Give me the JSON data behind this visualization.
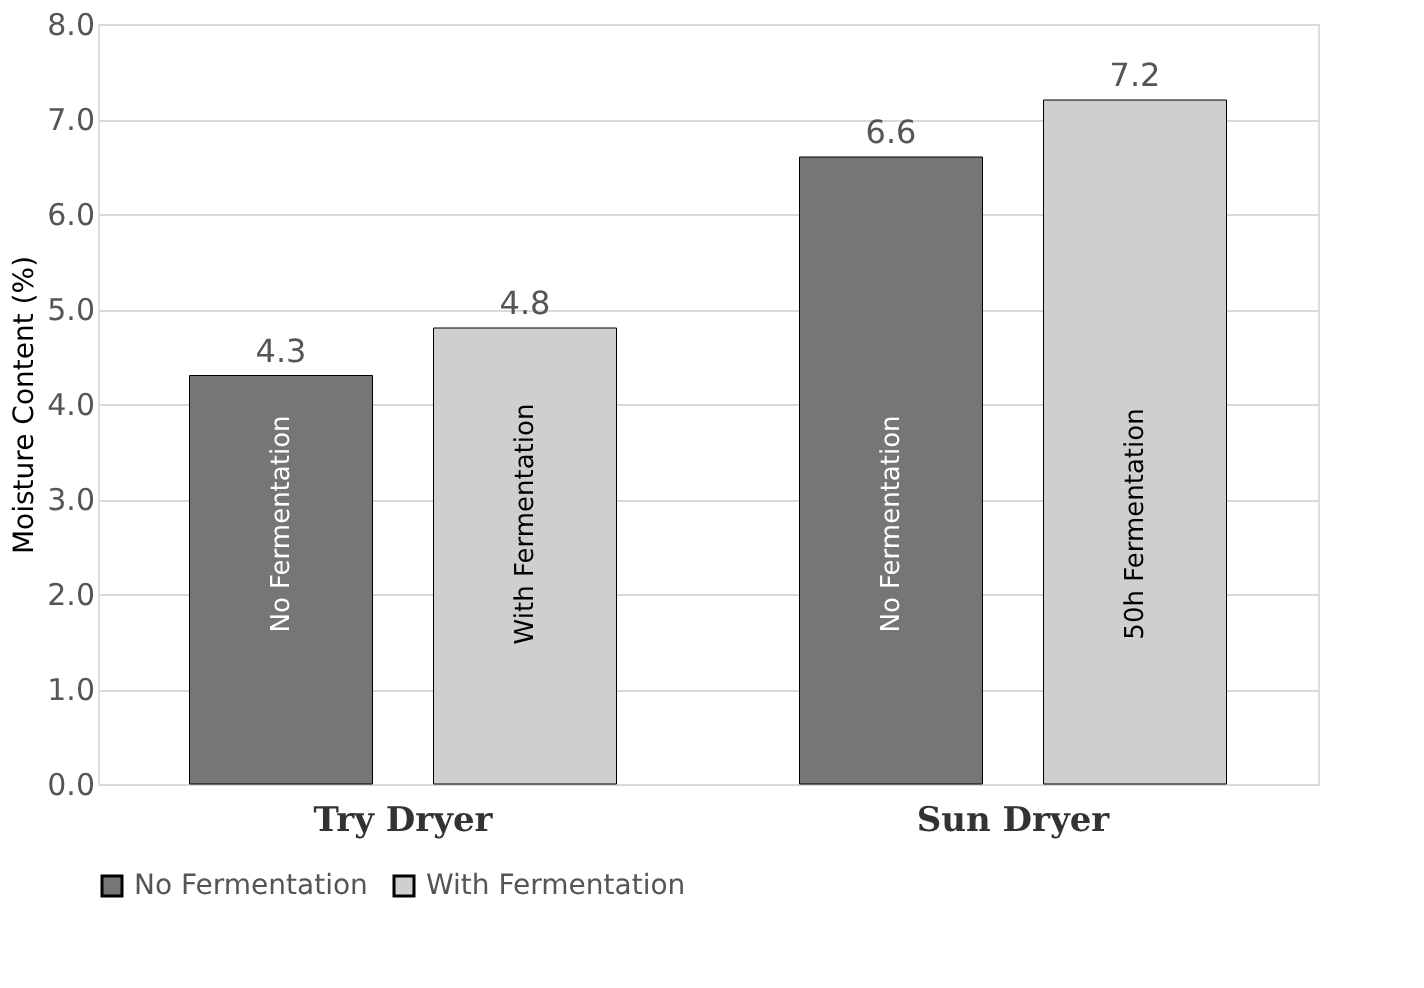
{
  "chart_data": {
    "type": "bar",
    "ylabel": "Moisture Content (%)",
    "categories": [
      "Try Dryer",
      "Sun Dryer"
    ],
    "series": [
      {
        "name": "No Fermentation",
        "color": "#767676",
        "values": [
          4.3,
          6.6
        ]
      },
      {
        "name": "With Fermentation",
        "color": "#cfcfcf",
        "values": [
          4.8,
          7.2
        ]
      }
    ],
    "ylim": [
      0,
      8
    ],
    "yticks": [
      {
        "value": 0,
        "label": "0.0"
      },
      {
        "value": 1,
        "label": "1.0"
      },
      {
        "value": 2,
        "label": "2.0"
      },
      {
        "value": 3,
        "label": "3.0"
      },
      {
        "value": 4,
        "label": "4.0"
      },
      {
        "value": 5,
        "label": "5.0"
      },
      {
        "value": 6,
        "label": "6.0"
      },
      {
        "value": 7,
        "label": "7.0"
      },
      {
        "value": 8,
        "label": "8.0"
      }
    ],
    "grid": "y",
    "legend": "bottom",
    "data_labels": true,
    "annotations": [
      "No Fermentation",
      "With Fermentation",
      "No Fermentation",
      "50h Fermentation"
    ]
  }
}
